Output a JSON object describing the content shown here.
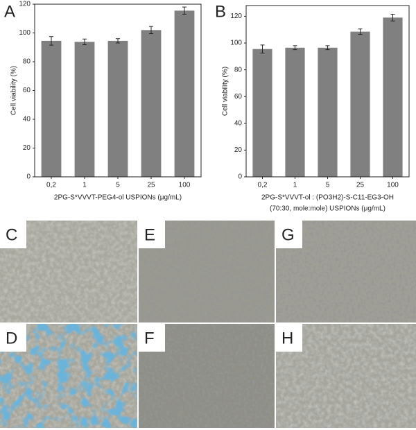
{
  "chart_data": [
    {
      "type": "bar",
      "panel": "A",
      "ylabel": "Cell viability (%)",
      "xlabel": [
        "2PG-S*VVVT-PEG4-ol USPIONs (μg/mL)"
      ],
      "categories": [
        "0,2",
        "1",
        "5",
        "25",
        "100"
      ],
      "values": [
        94.5,
        93.8,
        94.5,
        102,
        115.5
      ],
      "errors": [
        3,
        2,
        1.5,
        2.5,
        2.5
      ],
      "color": "#808080",
      "ylim": [
        0,
        120
      ],
      "yticks": [
        0,
        20,
        40,
        60,
        80,
        100,
        120
      ]
    },
    {
      "type": "bar",
      "panel": "B",
      "ylabel": "Cell viability (%)",
      "xlabel": [
        "2PG-S*VVVT-ol : (PO3H2)-S-C11-EG3-OH",
        "(70:30, mole:mole) USPIONs (μg/mL)"
      ],
      "categories": [
        "0,2",
        "1",
        "5",
        "25",
        "100"
      ],
      "values": [
        95.5,
        96.5,
        96.5,
        108.5,
        119
      ],
      "errors": [
        3,
        1.5,
        1.5,
        2,
        2.5
      ],
      "color": "#808080",
      "ylim": [
        0,
        128
      ],
      "yticks": [
        0,
        20,
        40,
        60,
        80,
        100,
        120
      ]
    }
  ],
  "micrographs": [
    {
      "label": "C"
    },
    {
      "label": "E"
    },
    {
      "label": "G"
    },
    {
      "label": "D"
    },
    {
      "label": "F"
    },
    {
      "label": "H"
    }
  ]
}
